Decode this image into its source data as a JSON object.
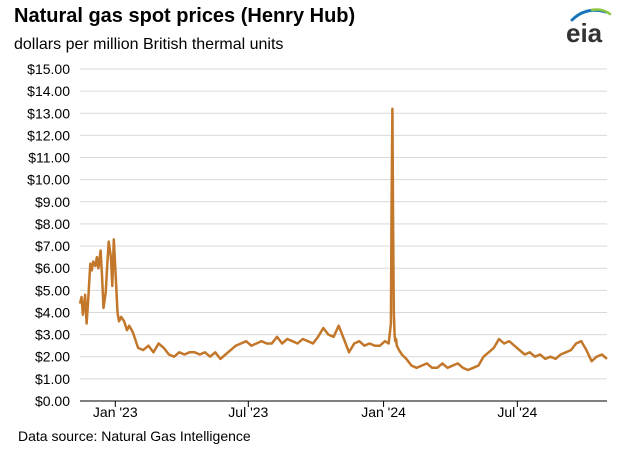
{
  "header": {
    "title": "Natural gas spot prices (Henry Hub)",
    "subtitle": "dollars per million British thermal units",
    "logo_text": "eia"
  },
  "footer": {
    "source": "Data source: Natural Gas Intelligence"
  },
  "colors": {
    "line": "#C3772A",
    "grid": "#D9D9D9",
    "axis": "#000000",
    "logo_blue": "#1B75BB",
    "logo_green": "#8DC63F"
  },
  "chart_data": {
    "type": "line",
    "title": "Natural gas spot prices (Henry Hub)",
    "subtitle": "dollars per million British thermal units",
    "xlabel": "",
    "ylabel": "",
    "ylim": [
      0,
      15
    ],
    "xlim": [
      "2022-11-14",
      "2024-10-31"
    ],
    "y_ticks": [
      "$0.00",
      "$1.00",
      "$2.00",
      "$3.00",
      "$4.00",
      "$5.00",
      "$6.00",
      "$7.00",
      "$8.00",
      "$9.00",
      "$10.00",
      "$11.00",
      "$12.00",
      "$13.00",
      "$14.00",
      "$15.00"
    ],
    "y_tick_values": [
      0,
      1,
      2,
      3,
      4,
      5,
      6,
      7,
      8,
      9,
      10,
      11,
      12,
      13,
      14,
      15
    ],
    "x_ticks": [
      {
        "label": "Jan '23",
        "date": "2023-01-01"
      },
      {
        "label": "Jul '23",
        "date": "2023-07-01"
      },
      {
        "label": "Jan '24",
        "date": "2024-01-01"
      },
      {
        "label": "Jul '24",
        "date": "2024-07-01"
      }
    ],
    "grid": "horizontal",
    "series": [
      {
        "color": "#C3772A",
        "x": [
          "2022-11-14",
          "2022-11-16",
          "2022-11-18",
          "2022-11-21",
          "2022-11-23",
          "2022-11-25",
          "2022-11-28",
          "2022-11-30",
          "2022-12-02",
          "2022-12-05",
          "2022-12-07",
          "2022-12-09",
          "2022-12-12",
          "2022-12-14",
          "2022-12-16",
          "2022-12-19",
          "2022-12-21",
          "2022-12-23",
          "2022-12-26",
          "2022-12-28",
          "2022-12-30",
          "2023-01-02",
          "2023-01-04",
          "2023-01-06",
          "2023-01-09",
          "2023-01-13",
          "2023-01-17",
          "2023-01-20",
          "2023-01-25",
          "2023-02-01",
          "2023-02-08",
          "2023-02-15",
          "2023-02-22",
          "2023-03-01",
          "2023-03-08",
          "2023-03-15",
          "2023-03-22",
          "2023-03-29",
          "2023-04-05",
          "2023-04-12",
          "2023-04-19",
          "2023-04-26",
          "2023-05-03",
          "2023-05-10",
          "2023-05-17",
          "2023-05-24",
          "2023-05-31",
          "2023-06-07",
          "2023-06-14",
          "2023-06-21",
          "2023-06-28",
          "2023-07-05",
          "2023-07-12",
          "2023-07-19",
          "2023-07-26",
          "2023-08-02",
          "2023-08-09",
          "2023-08-16",
          "2023-08-23",
          "2023-08-30",
          "2023-09-06",
          "2023-09-13",
          "2023-09-20",
          "2023-09-27",
          "2023-10-04",
          "2023-10-11",
          "2023-10-18",
          "2023-10-25",
          "2023-11-01",
          "2023-11-08",
          "2023-11-15",
          "2023-11-22",
          "2023-11-29",
          "2023-12-06",
          "2023-12-13",
          "2023-12-20",
          "2023-12-27",
          "2024-01-03",
          "2024-01-08",
          "2024-01-11",
          "2024-01-12",
          "2024-01-13",
          "2024-01-14",
          "2024-01-15",
          "2024-01-16",
          "2024-01-17",
          "2024-01-18",
          "2024-01-19",
          "2024-01-22",
          "2024-01-26",
          "2024-02-01",
          "2024-02-08",
          "2024-02-15",
          "2024-02-22",
          "2024-02-29",
          "2024-03-07",
          "2024-03-14",
          "2024-03-21",
          "2024-03-28",
          "2024-04-04",
          "2024-04-11",
          "2024-04-18",
          "2024-04-25",
          "2024-05-02",
          "2024-05-09",
          "2024-05-16",
          "2024-05-23",
          "2024-05-30",
          "2024-06-06",
          "2024-06-13",
          "2024-06-20",
          "2024-06-27",
          "2024-07-04",
          "2024-07-11",
          "2024-07-18",
          "2024-07-25",
          "2024-08-01",
          "2024-08-08",
          "2024-08-15",
          "2024-08-22",
          "2024-08-29",
          "2024-09-05",
          "2024-09-12",
          "2024-09-19",
          "2024-09-26",
          "2024-10-03",
          "2024-10-10",
          "2024-10-17",
          "2024-10-24",
          "2024-10-31"
        ],
        "y": [
          4.4,
          4.7,
          3.9,
          4.8,
          3.5,
          4.5,
          6.2,
          5.9,
          6.3,
          6.1,
          6.5,
          6.0,
          6.8,
          5.6,
          4.2,
          4.9,
          6.1,
          7.2,
          6.5,
          5.2,
          7.3,
          5.4,
          4.0,
          3.6,
          3.8,
          3.6,
          3.2,
          3.4,
          3.1,
          2.4,
          2.3,
          2.5,
          2.2,
          2.6,
          2.4,
          2.1,
          2.0,
          2.2,
          2.1,
          2.2,
          2.2,
          2.1,
          2.2,
          2.0,
          2.2,
          1.9,
          2.1,
          2.3,
          2.5,
          2.6,
          2.7,
          2.5,
          2.6,
          2.7,
          2.6,
          2.6,
          2.9,
          2.6,
          2.8,
          2.7,
          2.6,
          2.8,
          2.7,
          2.6,
          2.9,
          3.3,
          3.0,
          2.9,
          3.4,
          2.8,
          2.2,
          2.6,
          2.7,
          2.5,
          2.6,
          2.5,
          2.5,
          2.7,
          2.6,
          3.5,
          9.0,
          13.2,
          8.0,
          4.0,
          3.0,
          2.7,
          2.8,
          2.5,
          2.3,
          2.1,
          1.9,
          1.6,
          1.5,
          1.6,
          1.7,
          1.5,
          1.5,
          1.7,
          1.5,
          1.6,
          1.7,
          1.5,
          1.4,
          1.5,
          1.6,
          2.0,
          2.2,
          2.4,
          2.8,
          2.6,
          2.7,
          2.5,
          2.3,
          2.1,
          2.2,
          2.0,
          2.1,
          1.9,
          2.0,
          1.9,
          2.1,
          2.2,
          2.3,
          2.6,
          2.7,
          2.3,
          1.8,
          2.0,
          2.1,
          1.9
        ]
      }
    ]
  }
}
